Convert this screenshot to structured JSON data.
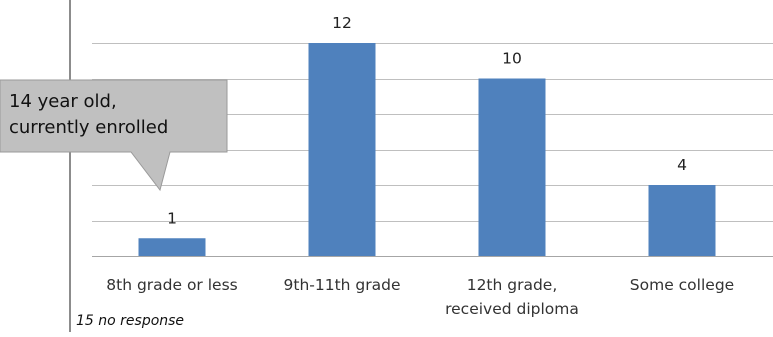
{
  "chart_data": {
    "type": "bar",
    "categories": [
      "8th grade or less",
      "9th-11th grade",
      "12th grade, received diploma",
      "Some college"
    ],
    "category_label_lines": [
      [
        "8th grade or less"
      ],
      [
        "9th-11th grade"
      ],
      [
        "12th grade,",
        "received diploma"
      ],
      [
        "Some college"
      ]
    ],
    "values": [
      1,
      12,
      10,
      4
    ],
    "ylim": [
      0,
      12
    ],
    "grid": true,
    "bar_color": "#4f81bd",
    "annotation": {
      "lines": [
        "14 year old,",
        "currently enrolled"
      ],
      "points_to": "8th grade or less",
      "fill": "#c0c0c0"
    },
    "footnote": "15 no response"
  }
}
